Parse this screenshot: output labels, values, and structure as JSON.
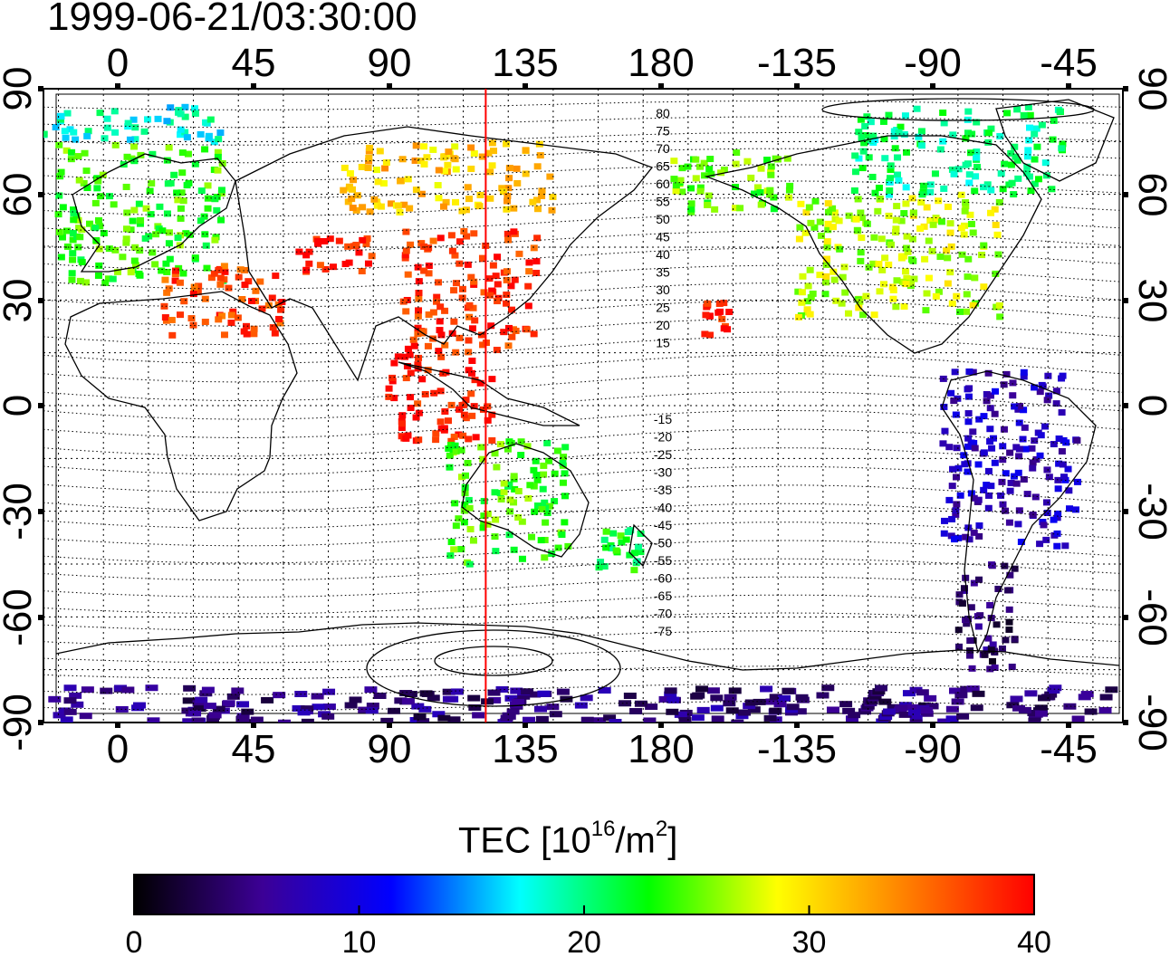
{
  "title": "1999-06-21/03:30:00",
  "map": {
    "x_ticks_top": [
      "0",
      "45",
      "90",
      "135",
      "180",
      "-135",
      "-90",
      "-45"
    ],
    "x_ticks_bottom": [
      "0",
      "45",
      "90",
      "135",
      "180",
      "-135",
      "-90",
      "-45"
    ],
    "y_ticks_left": [
      "90",
      "60",
      "30",
      "0",
      "-30",
      "-60",
      "-90"
    ],
    "y_ticks_right": [
      "90",
      "60",
      "30",
      "0",
      "-30",
      "-60",
      "-90"
    ],
    "meridian_longitude": 127.5,
    "meridian_color": "#ff0000",
    "contour_labels_north": [
      "80",
      "75",
      "70",
      "65",
      "60",
      "55",
      "50",
      "45",
      "40",
      "35",
      "30",
      "25",
      "20",
      "15"
    ],
    "contour_labels_south": [
      "-15",
      "-20",
      "-25",
      "-30",
      "-35",
      "-40",
      "-45",
      "-50",
      "-55",
      "-60",
      "-65",
      "-70",
      "-75"
    ],
    "tec_regions": [
      {
        "name": "europe",
        "lon": [
          -15,
          40
        ],
        "lat": [
          35,
          75
        ],
        "value": 24
      },
      {
        "name": "north-atlantic-arctic",
        "lon": [
          -20,
          40
        ],
        "lat": [
          75,
          85
        ],
        "value": 18
      },
      {
        "name": "middle-east",
        "lon": [
          20,
          60
        ],
        "lat": [
          20,
          40
        ],
        "value": 37
      },
      {
        "name": "central-asia",
        "lon": [
          65,
          90
        ],
        "lat": [
          38,
          48
        ],
        "value": 39
      },
      {
        "name": "east-asia",
        "lon": [
          100,
          145
        ],
        "lat": [
          15,
          50
        ],
        "value": 38
      },
      {
        "name": "siberia",
        "lon": [
          80,
          150
        ],
        "lat": [
          55,
          75
        ],
        "value": 31
      },
      {
        "name": "southeast-asia",
        "lon": [
          95,
          130
        ],
        "lat": [
          -10,
          15
        ],
        "value": 39
      },
      {
        "name": "australia",
        "lon": [
          115,
          155
        ],
        "lat": [
          -45,
          -10
        ],
        "value": 24
      },
      {
        "name": "new-zealand",
        "lon": [
          165,
          180
        ],
        "lat": [
          -48,
          -35
        ],
        "value": 22
      },
      {
        "name": "pacific-islands",
        "lon": [
          -160,
          -150
        ],
        "lat": [
          20,
          30
        ],
        "value": 39
      },
      {
        "name": "alaska",
        "lon": [
          -170,
          -130
        ],
        "lat": [
          55,
          72
        ],
        "value": 25
      },
      {
        "name": "north-america",
        "lon": [
          -130,
          -60
        ],
        "lat": [
          25,
          60
        ],
        "value": 27
      },
      {
        "name": "canada-arctic",
        "lon": [
          -110,
          -40
        ],
        "lat": [
          60,
          85
        ],
        "value": 20
      },
      {
        "name": "south-america",
        "lon": [
          -80,
          -35
        ],
        "lat": [
          -40,
          10
        ],
        "value": 8
      },
      {
        "name": "patagonia",
        "lon": [
          -75,
          -55
        ],
        "lat": [
          -75,
          -45
        ],
        "value": 4
      },
      {
        "name": "antarctica",
        "lon": [
          -180,
          180
        ],
        "lat": [
          -90,
          -80
        ],
        "value": 5
      }
    ]
  },
  "colorbar": {
    "title": "TEC  [10",
    "title_exp1": "16",
    "title_mid": "/m",
    "title_exp2": "2",
    "title_end": "]",
    "min": 0,
    "max": 40,
    "ticks": [
      "0",
      "10",
      "20",
      "30",
      "40"
    ],
    "colors": [
      "#000000",
      "#3c0096",
      "#0000ff",
      "#00ffff",
      "#00ff00",
      "#ffff00",
      "#ff8000",
      "#ff0000"
    ]
  }
}
